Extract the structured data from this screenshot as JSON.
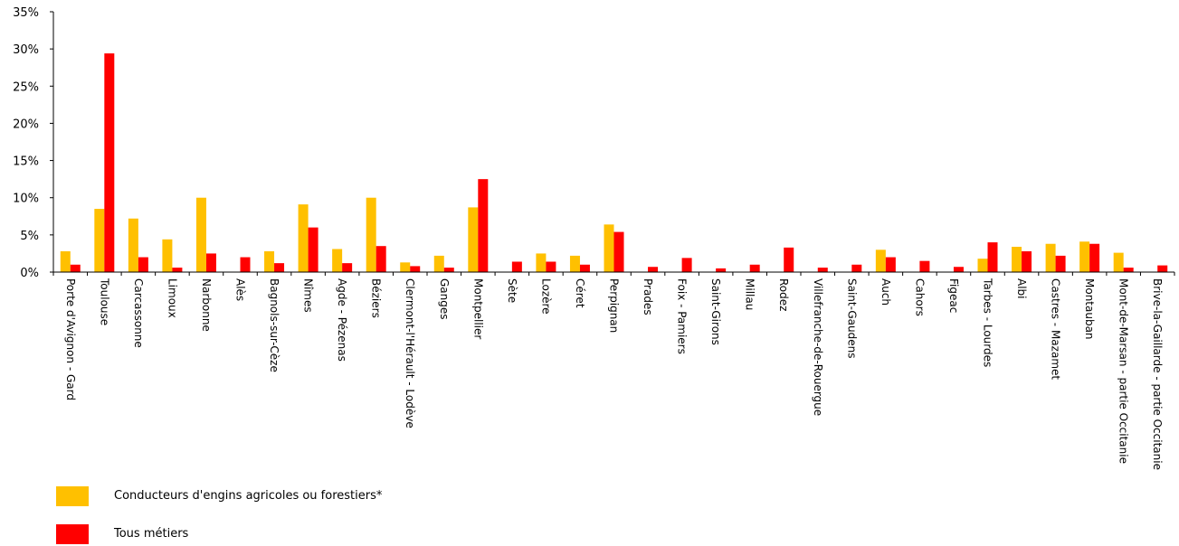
{
  "chart_data": {
    "type": "bar",
    "categories": [
      "Porte d'Avignon - Gard",
      "Toulouse",
      "Carcassonne",
      "Limoux",
      "Narbonne",
      "Alès",
      "Bagnols-sur-Cèze",
      "Nîmes",
      "Agde - Pézenas",
      "Béziers",
      "Clermont-l'Hérault - Lodève",
      "Ganges",
      "Montpellier",
      "Sète",
      "Lozère",
      "Céret",
      "Perpignan",
      "Prades",
      "Foix - Pamiers",
      "Saint-Girons",
      "Millau",
      "Rodez",
      "Villefranche-de-Rouergue",
      "Saint-Gaudens",
      "Auch",
      "Cahors",
      "Figeac",
      "Tarbes - Lourdes",
      "Albi",
      "Castres - Mazamet",
      "Montauban",
      "Mont-de-Marsan - partie Occitanie",
      "Brive-la-Gaillarde - partie Occitanie"
    ],
    "series": [
      {
        "name": "Conducteurs d'engins agricoles ou forestiers*",
        "color": "#FFC000",
        "values": [
          2.8,
          8.5,
          7.2,
          4.4,
          10.0,
          0,
          2.8,
          9.1,
          3.1,
          10.0,
          1.3,
          2.2,
          8.7,
          0,
          2.5,
          2.2,
          6.4,
          0,
          0,
          0,
          0,
          0,
          0,
          0,
          3.0,
          0,
          0,
          1.8,
          3.4,
          3.8,
          4.1,
          2.6,
          0
        ]
      },
      {
        "name": "Tous métiers",
        "color": "#FF0000",
        "values": [
          1.0,
          29.4,
          2.0,
          0.6,
          2.5,
          2.0,
          1.2,
          6.0,
          1.2,
          3.5,
          0.8,
          0.6,
          12.5,
          1.4,
          1.4,
          1.0,
          5.4,
          0.7,
          1.9,
          0.5,
          1.0,
          3.3,
          0.6,
          1.0,
          2.0,
          1.5,
          0.7,
          4.0,
          2.8,
          2.2,
          3.8,
          0.6,
          0.9
        ]
      }
    ],
    "yticks": [
      "0%",
      "5%",
      "10%",
      "15%",
      "20%",
      "25%",
      "30%",
      "35%"
    ],
    "ylim": [
      0,
      35
    ],
    "grid": false,
    "legend_position": "bottom-left"
  }
}
